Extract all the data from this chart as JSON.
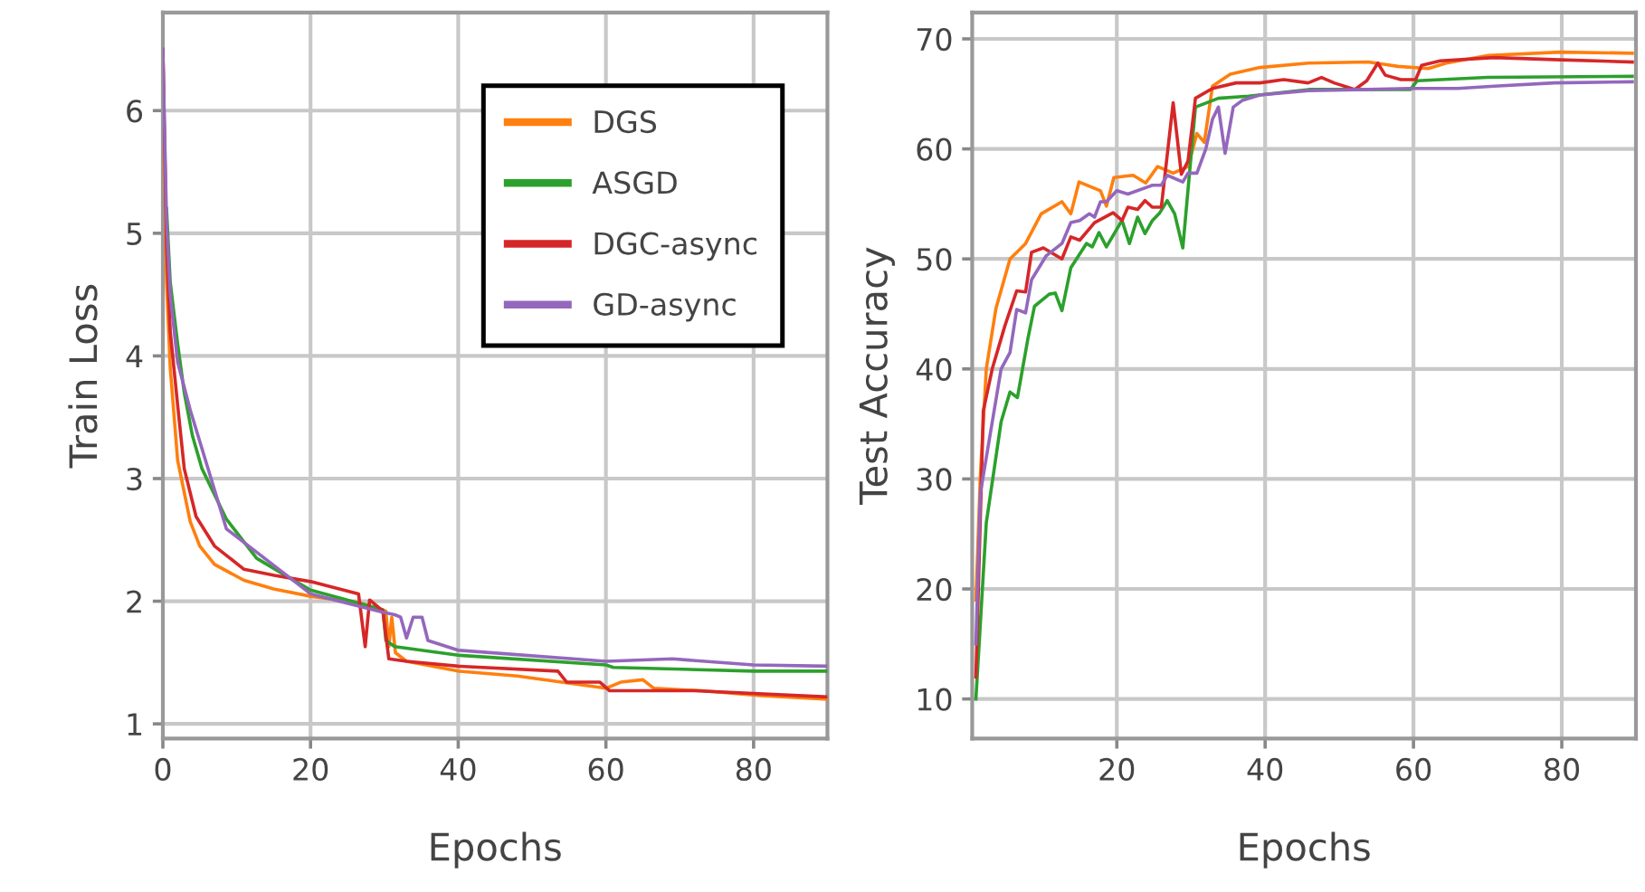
{
  "chart_data": [
    {
      "type": "line",
      "xlabel": "Epochs",
      "ylabel": "Train Loss",
      "xlim": [
        0,
        90
      ],
      "ylim": [
        0.88,
        6.8
      ],
      "xticks": [
        0,
        20,
        40,
        60,
        80
      ],
      "yticks": [
        1,
        2,
        3,
        4,
        5,
        6
      ],
      "grid": true,
      "legend": "top right",
      "line_style": "solid",
      "marker": "none",
      "series": [
        {
          "name": "DGS",
          "color": "#ff7f0e",
          "x": [
            0,
            0.5,
            1,
            2,
            3.7,
            5,
            7,
            11,
            15,
            20,
            26.5,
            30.2,
            30.6,
            31,
            31.5,
            33,
            40,
            48,
            54,
            60,
            62,
            65,
            66.5,
            73,
            81,
            90
          ],
          "values": [
            6.5,
            4.6,
            3.9,
            3.15,
            2.65,
            2.45,
            2.3,
            2.17,
            2.1,
            2.04,
            1.99,
            1.92,
            1.63,
            1.87,
            1.58,
            1.51,
            1.43,
            1.39,
            1.34,
            1.29,
            1.34,
            1.36,
            1.29,
            1.27,
            1.23,
            1.2
          ]
        },
        {
          "name": "ASGD",
          "color": "#2ca02c",
          "x": [
            0.5,
            1,
            2,
            2.9,
            4,
            5.3,
            8.6,
            12.7,
            20,
            29.8,
            30.2,
            31.4,
            40,
            60,
            61,
            80,
            90
          ],
          "values": [
            5.2,
            4.6,
            4.1,
            3.7,
            3.35,
            3.08,
            2.67,
            2.35,
            2.09,
            1.93,
            1.68,
            1.63,
            1.56,
            1.48,
            1.46,
            1.43,
            1.43
          ]
        },
        {
          "name": "DGC-async",
          "color": "#d62728",
          "x": [
            0,
            0.5,
            1,
            2,
            2.9,
            4.5,
            7,
            11,
            15.1,
            20,
            23.3,
            26.5,
            27.4,
            28,
            29.8,
            30.6,
            33,
            40,
            53.5,
            54.7,
            59.2,
            60.5,
            72,
            90
          ],
          "values": [
            6.5,
            4.9,
            4.2,
            3.6,
            3.08,
            2.69,
            2.45,
            2.26,
            2.21,
            2.16,
            2.11,
            2.06,
            1.63,
            2.01,
            1.92,
            1.53,
            1.51,
            1.47,
            1.43,
            1.34,
            1.34,
            1.27,
            1.27,
            1.22
          ]
        },
        {
          "name": "GD-async",
          "color": "#9467bd",
          "x": [
            0,
            0.5,
            1,
            2,
            3.7,
            8.6,
            20,
            29.8,
            31.4,
            32.2,
            33,
            33.9,
            35.1,
            35.9,
            40,
            60,
            69,
            80,
            90
          ],
          "values": [
            6.5,
            5.1,
            4.5,
            3.95,
            3.56,
            2.59,
            2.06,
            1.91,
            1.89,
            1.87,
            1.7,
            1.87,
            1.87,
            1.68,
            1.6,
            1.51,
            1.53,
            1.48,
            1.47
          ]
        }
      ]
    },
    {
      "type": "line",
      "xlabel": "Epochs",
      "ylabel": "Test Accuracy",
      "xlim": [
        0.5,
        90
      ],
      "ylim": [
        6.4,
        72.4
      ],
      "xticks": [
        20,
        40,
        60,
        80
      ],
      "yticks": [
        10,
        20,
        30,
        40,
        50,
        60,
        70
      ],
      "grid": true,
      "legend": false,
      "line_style": "solid",
      "marker": "none",
      "series": [
        {
          "color": "#ff7f0e",
          "x": [
            1,
            1.6,
            2.4,
            3.7,
            5.6,
            7.7,
            9.8,
            12.6,
            13.8,
            14.9,
            17.8,
            18.6,
            19.6,
            22.2,
            23.9,
            25.5,
            27.6,
            29.6,
            30.8,
            31.8,
            32.9,
            35.3,
            39.3,
            45.8,
            53.9,
            57.9,
            62,
            64.4,
            70.1,
            79.8,
            89.5
          ],
          "values": [
            19,
            30.3,
            40,
            45.5,
            50,
            51.4,
            54.1,
            55.2,
            54.1,
            57,
            56.2,
            54.8,
            57.4,
            57.6,
            56.9,
            58.4,
            57.8,
            58.4,
            61.4,
            60.6,
            65.7,
            66.8,
            67.4,
            67.8,
            67.9,
            67.5,
            67.3,
            67.8,
            68.5,
            68.8,
            68.7
          ]
        },
        {
          "color": "#2ca02c",
          "x": [
            1,
            2.4,
            4.4,
            5.6,
            6.6,
            8,
            8.9,
            10.9,
            11.7,
            12.6,
            13.8,
            15.9,
            16.7,
            17.6,
            18.6,
            20.7,
            21.7,
            22.8,
            23.8,
            24.8,
            25.8,
            26.8,
            27.8,
            28.9,
            30.6,
            33.7,
            37.8,
            45.9,
            54,
            59.6,
            60.5,
            70,
            89.5
          ],
          "values": [
            10,
            26,
            35.2,
            37.9,
            37.4,
            42.7,
            45.7,
            46.8,
            46.9,
            45.3,
            49.2,
            51.4,
            51.1,
            52.4,
            51.1,
            53.5,
            51.4,
            53.8,
            52.3,
            53.5,
            54.2,
            55.3,
            54.1,
            51,
            63.8,
            64.6,
            64.8,
            65.4,
            65.4,
            65.4,
            66.2,
            66.5,
            66.6
          ]
        },
        {
          "color": "#d62728",
          "x": [
            1,
            2,
            3.2,
            4.9,
            6.5,
            7.7,
            8.5,
            10.1,
            12.6,
            13.8,
            15,
            17,
            19.5,
            20.7,
            21.5,
            22.8,
            23.8,
            24.8,
            26,
            27.6,
            28.7,
            29.6,
            30.6,
            32.9,
            36.1,
            39.3,
            42.5,
            45.8,
            47.6,
            49.3,
            52.1,
            53.7,
            55.2,
            56.2,
            58.3,
            60.3,
            61.1,
            63.6,
            70.9,
            79.8,
            89.5
          ],
          "values": [
            12,
            36.2,
            40,
            43.9,
            47.1,
            47,
            50.6,
            51,
            50,
            52,
            51.7,
            53.3,
            54.2,
            53.5,
            54.7,
            54.5,
            55.3,
            54.7,
            54.7,
            64.2,
            57.7,
            58.9,
            64.6,
            65.5,
            66,
            66,
            66.3,
            66,
            66.5,
            66,
            65.4,
            66.2,
            67.8,
            66.7,
            66.3,
            66.3,
            67.6,
            68,
            68.3,
            68.1,
            67.9
          ]
        },
        {
          "color": "#9467bd",
          "x": [
            1,
            1.6,
            4.4,
            5.6,
            6.5,
            7.7,
            8.5,
            10.5,
            12.6,
            13.8,
            15,
            16.3,
            17,
            17.8,
            18.6,
            20,
            21.5,
            24.8,
            26,
            26.8,
            28.9,
            29.6,
            30.8,
            32,
            32.9,
            33.7,
            34.6,
            35.7,
            36.9,
            39.3,
            45.8,
            53.9,
            59.6,
            66,
            70.9,
            79,
            89.5
          ],
          "values": [
            15,
            28.7,
            40,
            41.5,
            45.4,
            45.1,
            48.1,
            50.3,
            51.4,
            53.3,
            53.5,
            54.1,
            53.8,
            55.2,
            55.2,
            56.2,
            55.9,
            56.7,
            56.7,
            57.6,
            57,
            57.8,
            57.8,
            60,
            62.7,
            63.8,
            59.6,
            63.8,
            64.4,
            64.9,
            65.3,
            65.4,
            65.5,
            65.5,
            65.7,
            66,
            66.1
          ]
        }
      ]
    }
  ]
}
